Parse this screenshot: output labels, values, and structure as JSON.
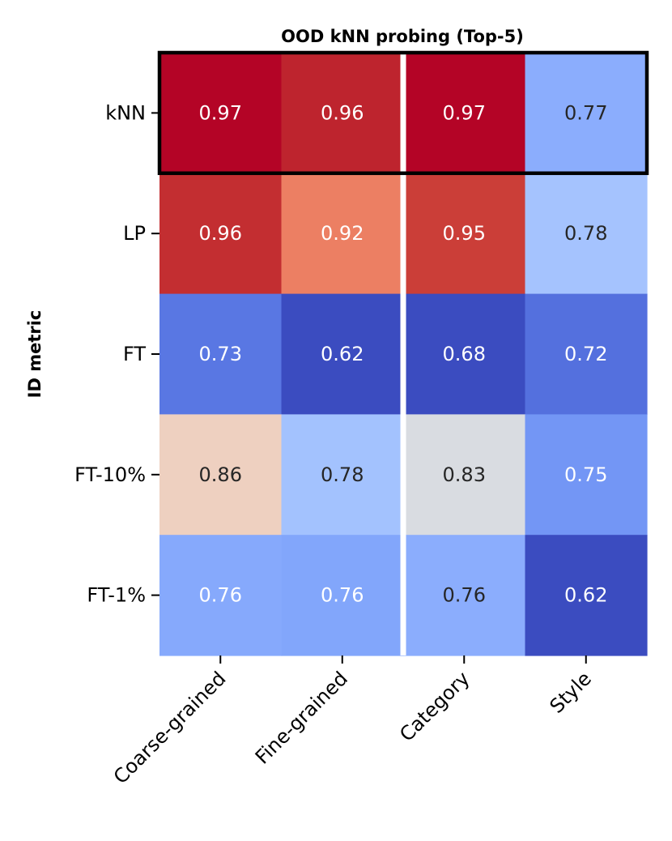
{
  "chart_data": {
    "type": "heatmap",
    "title": "OOD kNN probing (Top-5)",
    "xlabel": "",
    "ylabel": "ID metric",
    "columns": [
      "Coarse-grained",
      "Fine-grained",
      "Category",
      "Style"
    ],
    "rows": [
      "kNN",
      "LP",
      "FT",
      "FT-10%",
      "FT-1%"
    ],
    "values": [
      [
        0.97,
        0.96,
        0.97,
        0.77
      ],
      [
        0.96,
        0.92,
        0.95,
        0.78
      ],
      [
        0.73,
        0.62,
        0.68,
        0.72
      ],
      [
        0.86,
        0.78,
        0.83,
        0.75
      ],
      [
        0.76,
        0.76,
        0.76,
        0.62
      ]
    ],
    "cell_colors": [
      [
        "#b40426",
        "#be242e",
        "#b40426",
        "#8badfd"
      ],
      [
        "#c32e31",
        "#ec7f63",
        "#cb3e38",
        "#a5c3fe"
      ],
      [
        "#5977e3",
        "#3b4cc0",
        "#3b4cc0",
        "#5470de"
      ],
      [
        "#eed0c0",
        "#a3c2fe",
        "#d9dce1",
        "#7396f5"
      ],
      [
        "#86a9fc",
        "#82a6fb",
        "#8badfd",
        "#3b4cc0"
      ]
    ],
    "text_colors": [
      [
        "#ffffff",
        "#ffffff",
        "#ffffff",
        "#262626"
      ],
      [
        "#ffffff",
        "#ffffff",
        "#ffffff",
        "#262626"
      ],
      [
        "#ffffff",
        "#ffffff",
        "#ffffff",
        "#ffffff"
      ],
      [
        "#262626",
        "#262626",
        "#262626",
        "#ffffff"
      ],
      [
        "#ffffff",
        "#ffffff",
        "#262626",
        "#ffffff"
      ]
    ],
    "colormap": "coolwarm",
    "highlight_row": "kNN",
    "divider_after_column": "Fine-grained"
  }
}
